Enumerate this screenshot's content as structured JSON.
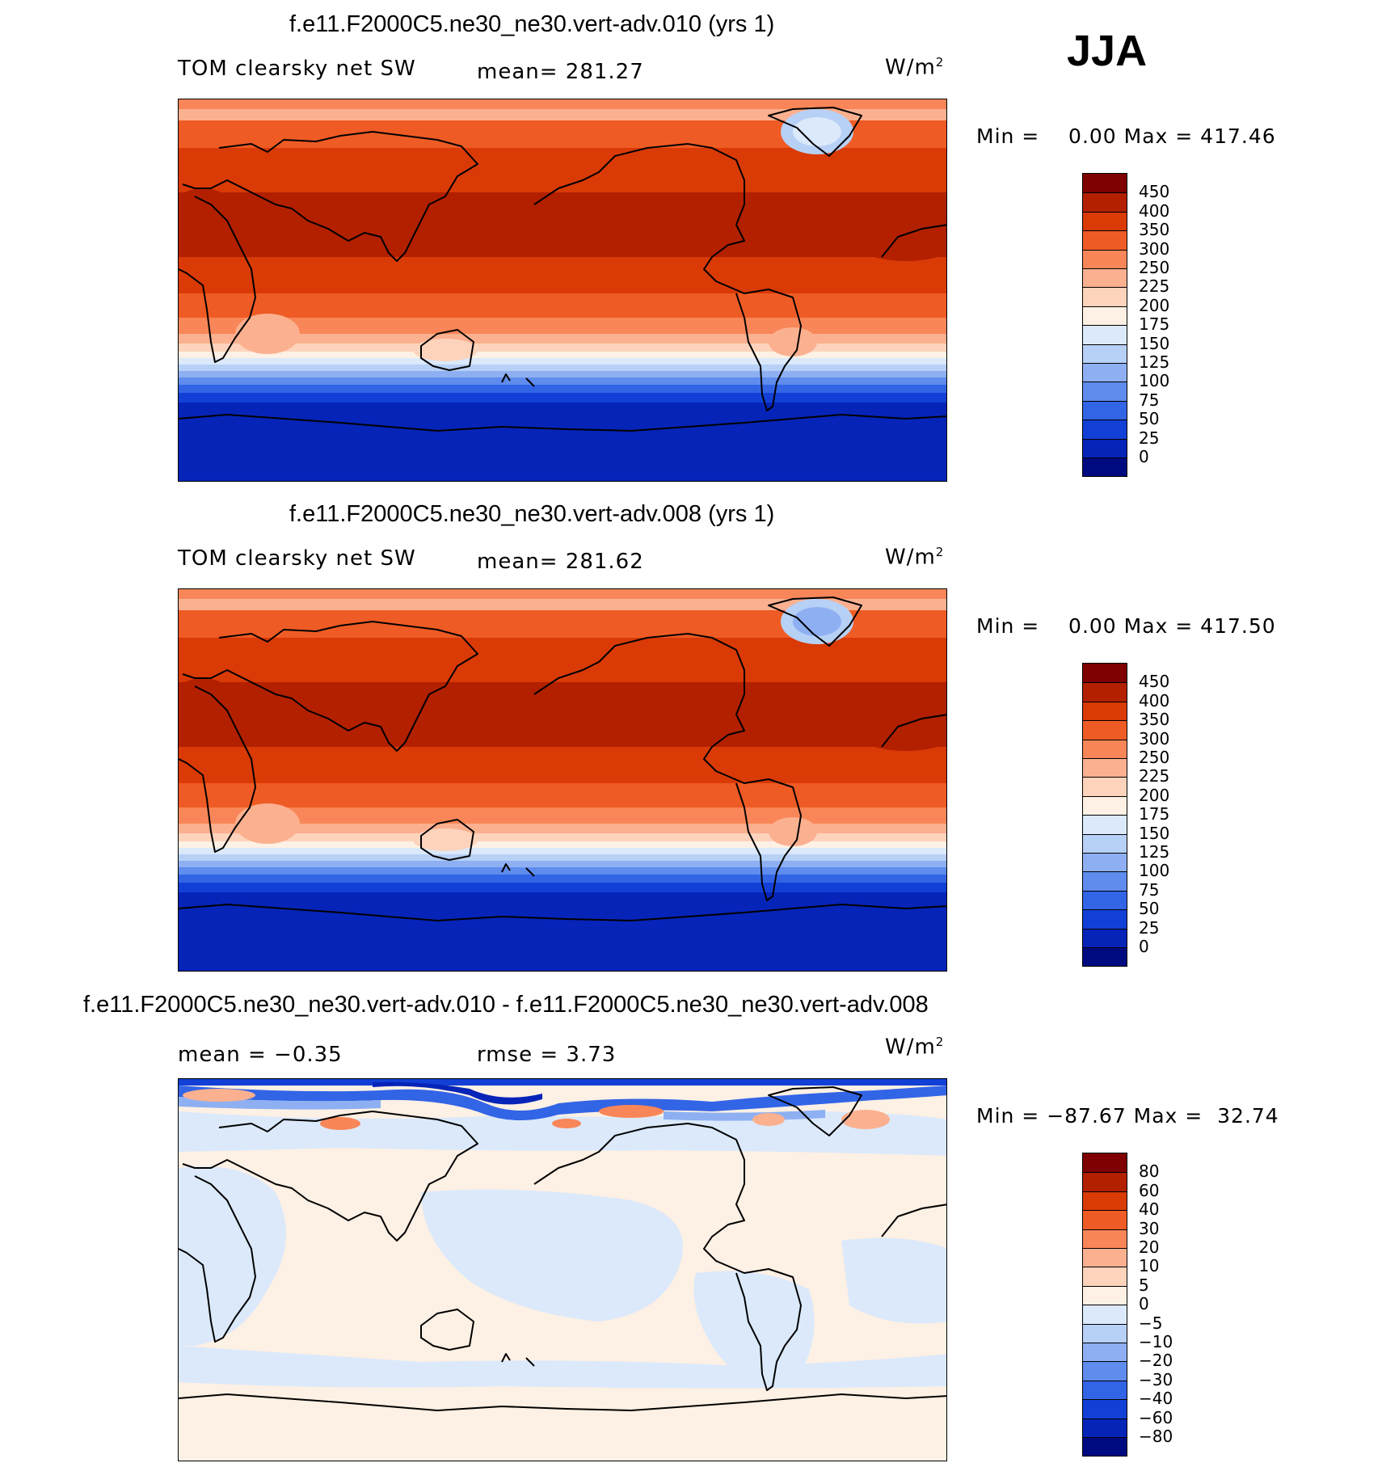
{
  "season": "JJA",
  "panels": [
    {
      "title": "f.e11.F2000C5.ne30_ne30.vert-adv.010 (yrs 1)",
      "left_label": "TOM clearsky net SW",
      "stat_label": "mean= 281.27",
      "units": "W/m",
      "units_sup": "2",
      "minmax": "Min =    0.00 Max = 417.46"
    },
    {
      "title": "f.e11.F2000C5.ne30_ne30.vert-adv.008 (yrs 1)",
      "left_label": "TOM clearsky net SW",
      "stat_label": "mean= 281.62",
      "units": "W/m",
      "units_sup": "2",
      "minmax": "Min =    0.00 Max = 417.50"
    },
    {
      "title": "f.e11.F2000C5.ne30_ne30.vert-adv.010 - f.e11.F2000C5.ne30_ne30.vert-adv.008",
      "left_label": "mean =   −0.35",
      "stat_label": "rmse =    3.73",
      "units": "W/m",
      "units_sup": "2",
      "minmax": "Min = −87.67 Max =  32.74"
    }
  ],
  "colorbars": [
    {
      "labels": [
        "450",
        "400",
        "350",
        "300",
        "250",
        "225",
        "200",
        "175",
        "150",
        "125",
        "100",
        "75",
        "50",
        "25",
        "0"
      ],
      "colors": [
        "#7f0000",
        "#b22000",
        "#d93a06",
        "#ef5b24",
        "#f98658",
        "#fbb08f",
        "#fdd3bc",
        "#fdf0e4",
        "#dbe9fb",
        "#b7d0f6",
        "#8eb0f2",
        "#5f8ced",
        "#3264e6",
        "#1240d6",
        "#0624b8",
        "#000a80"
      ]
    },
    {
      "labels": [
        "450",
        "400",
        "350",
        "300",
        "250",
        "225",
        "200",
        "175",
        "150",
        "125",
        "100",
        "75",
        "50",
        "25",
        "0"
      ],
      "colors": [
        "#7f0000",
        "#b22000",
        "#d93a06",
        "#ef5b24",
        "#f98658",
        "#fbb08f",
        "#fdd3bc",
        "#fdf0e4",
        "#dbe9fb",
        "#b7d0f6",
        "#8eb0f2",
        "#5f8ced",
        "#3264e6",
        "#1240d6",
        "#0624b8",
        "#000a80"
      ]
    },
    {
      "labels": [
        "80",
        "60",
        "40",
        "30",
        "20",
        "10",
        "5",
        "0",
        "−5",
        "−10",
        "−20",
        "−30",
        "−40",
        "−60",
        "−80"
      ],
      "colors": [
        "#7f0000",
        "#b22000",
        "#d93a06",
        "#ef5b24",
        "#f98658",
        "#fbb08f",
        "#fdd3bc",
        "#fdf0e4",
        "#dbe9fb",
        "#b7d0f6",
        "#8eb0f2",
        "#5f8ced",
        "#3264e6",
        "#1240d6",
        "#0624b8",
        "#000a80"
      ]
    }
  ]
}
